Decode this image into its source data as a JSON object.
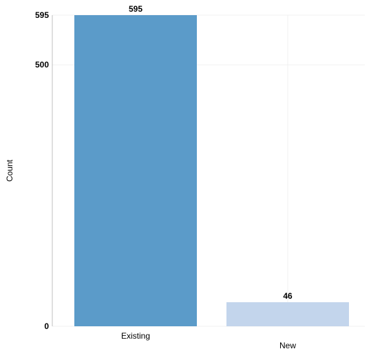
{
  "chart_data": {
    "type": "bar",
    "title": "",
    "xlabel": "",
    "ylabel": "Count",
    "categories": [
      "Existing",
      "New"
    ],
    "values": [
      595,
      46
    ],
    "data_labels": [
      "595",
      "46"
    ],
    "bar_colors": [
      "#5b9bc9",
      "#c3d5ec"
    ],
    "ylim": [
      0,
      595
    ],
    "y_ticks": [
      0,
      500,
      595
    ],
    "y_tick_labels": [
      "0",
      "500",
      "595"
    ],
    "grid": true,
    "legend": "none"
  }
}
